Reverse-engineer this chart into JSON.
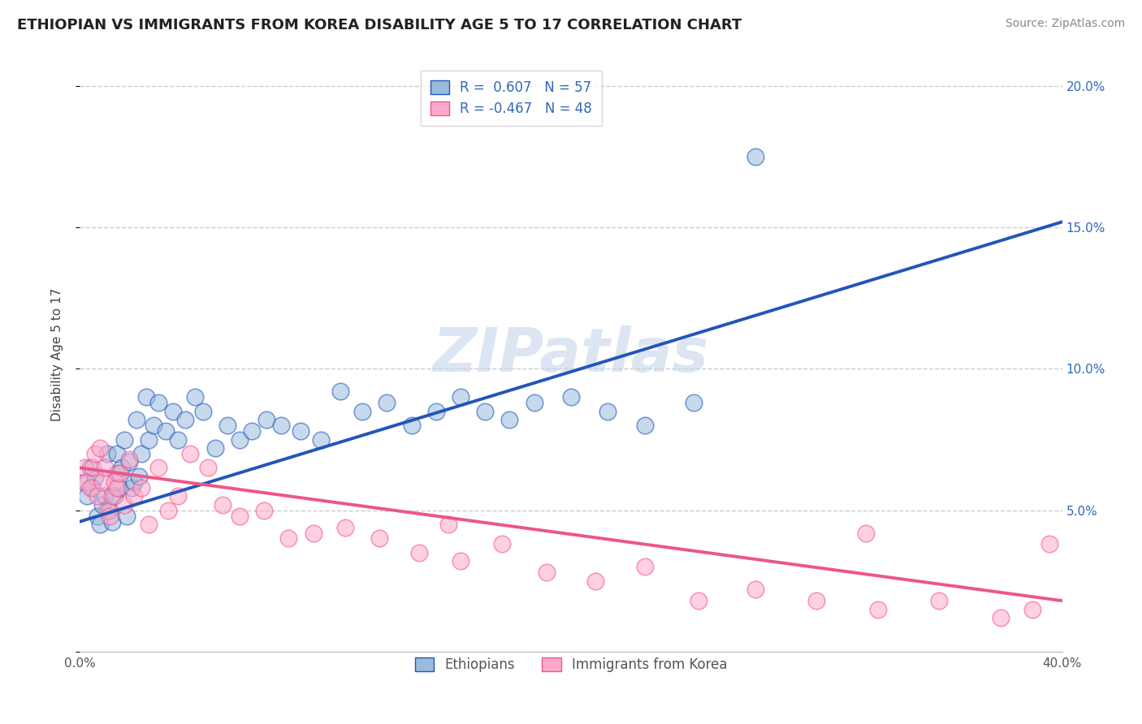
{
  "title": "ETHIOPIAN VS IMMIGRANTS FROM KOREA DISABILITY AGE 5 TO 17 CORRELATION CHART",
  "source": "Source: ZipAtlas.com",
  "ylabel": "Disability Age 5 to 17",
  "xlim": [
    0.0,
    0.4
  ],
  "ylim": [
    0.0,
    0.21
  ],
  "blue_color": "#99BBDD",
  "pink_color": "#FFAACC",
  "blue_line_color": "#2255BB",
  "pink_line_color": "#EE5588",
  "R_blue": 0.607,
  "N_blue": 57,
  "R_pink": -0.467,
  "N_pink": 48,
  "legend_label_blue": "Ethiopians",
  "legend_label_pink": "Immigrants from Korea",
  "watermark": "ZIPatlas",
  "background_color": "#FFFFFF",
  "grid_color": "#CCCCCC",
  "ethiopian_x": [
    0.002,
    0.003,
    0.004,
    0.005,
    0.006,
    0.007,
    0.008,
    0.009,
    0.01,
    0.011,
    0.012,
    0.013,
    0.014,
    0.015,
    0.015,
    0.016,
    0.017,
    0.018,
    0.019,
    0.02,
    0.021,
    0.022,
    0.023,
    0.024,
    0.025,
    0.027,
    0.028,
    0.03,
    0.032,
    0.035,
    0.038,
    0.04,
    0.043,
    0.047,
    0.05,
    0.055,
    0.06,
    0.065,
    0.07,
    0.076,
    0.082,
    0.09,
    0.098,
    0.106,
    0.115,
    0.125,
    0.135,
    0.145,
    0.155,
    0.165,
    0.175,
    0.185,
    0.2,
    0.215,
    0.23,
    0.25,
    0.275
  ],
  "ethiopian_y": [
    0.06,
    0.055,
    0.065,
    0.058,
    0.062,
    0.048,
    0.045,
    0.052,
    0.055,
    0.07,
    0.05,
    0.046,
    0.055,
    0.063,
    0.07,
    0.058,
    0.065,
    0.075,
    0.048,
    0.067,
    0.058,
    0.06,
    0.082,
    0.062,
    0.07,
    0.09,
    0.075,
    0.08,
    0.088,
    0.078,
    0.085,
    0.075,
    0.082,
    0.09,
    0.085,
    0.072,
    0.08,
    0.075,
    0.078,
    0.082,
    0.08,
    0.078,
    0.075,
    0.092,
    0.085,
    0.088,
    0.08,
    0.085,
    0.09,
    0.085,
    0.082,
    0.088,
    0.09,
    0.085,
    0.08,
    0.088,
    0.175
  ],
  "korean_x": [
    0.002,
    0.003,
    0.004,
    0.005,
    0.006,
    0.007,
    0.008,
    0.009,
    0.01,
    0.011,
    0.012,
    0.013,
    0.014,
    0.015,
    0.016,
    0.018,
    0.02,
    0.022,
    0.025,
    0.028,
    0.032,
    0.036,
    0.04,
    0.045,
    0.052,
    0.058,
    0.065,
    0.075,
    0.085,
    0.095,
    0.108,
    0.122,
    0.138,
    0.155,
    0.172,
    0.19,
    0.21,
    0.23,
    0.252,
    0.275,
    0.3,
    0.325,
    0.35,
    0.375,
    0.388,
    0.395,
    0.32,
    0.15
  ],
  "korean_y": [
    0.065,
    0.06,
    0.058,
    0.065,
    0.07,
    0.055,
    0.072,
    0.06,
    0.065,
    0.05,
    0.048,
    0.055,
    0.06,
    0.058,
    0.063,
    0.052,
    0.068,
    0.055,
    0.058,
    0.045,
    0.065,
    0.05,
    0.055,
    0.07,
    0.065,
    0.052,
    0.048,
    0.05,
    0.04,
    0.042,
    0.044,
    0.04,
    0.035,
    0.032,
    0.038,
    0.028,
    0.025,
    0.03,
    0.018,
    0.022,
    0.018,
    0.015,
    0.018,
    0.012,
    0.015,
    0.038,
    0.042,
    0.045
  ],
  "blue_trendline_x": [
    0.0,
    0.4
  ],
  "blue_trendline_y": [
    0.046,
    0.152
  ],
  "pink_trendline_x": [
    0.0,
    0.4
  ],
  "pink_trendline_y": [
    0.065,
    0.018
  ]
}
